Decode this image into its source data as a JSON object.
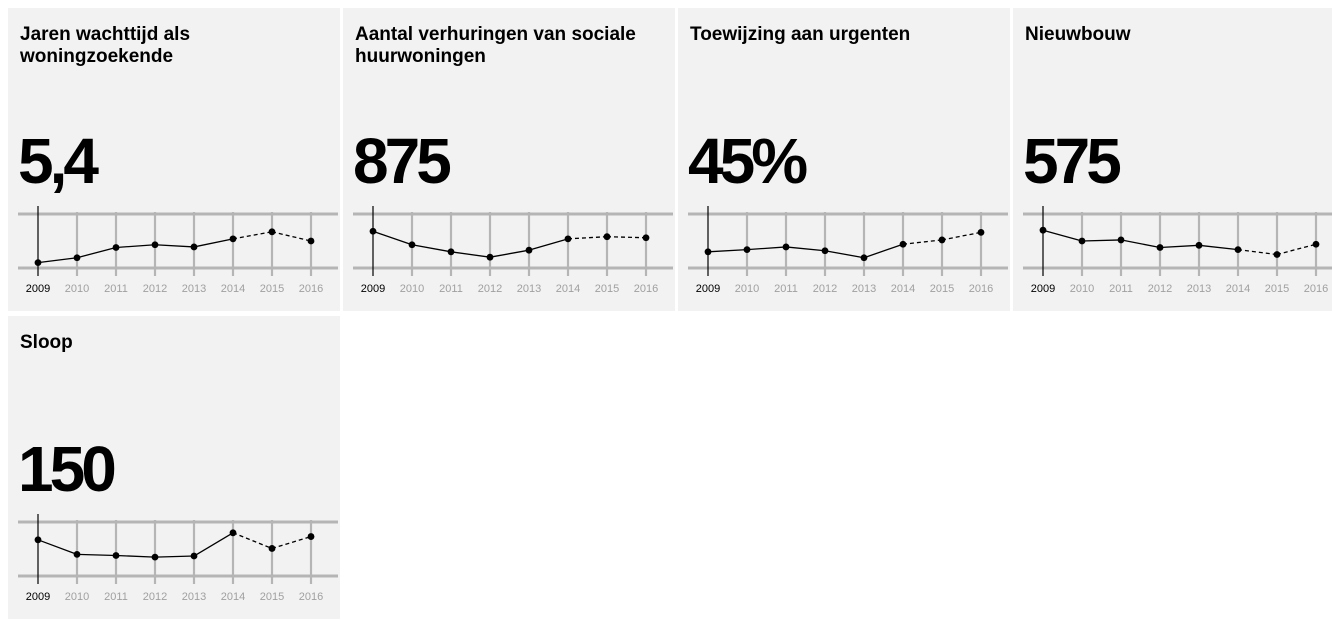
{
  "chart_data": [
    {
      "type": "line",
      "title": "Jaren wachttijd als woningzoekende",
      "value": "5,4",
      "x": [
        "2009",
        "2010",
        "2011",
        "2012",
        "2013",
        "2014",
        "2015",
        "2016"
      ],
      "values": [
        1.0,
        1.9,
        3.8,
        4.3,
        3.9,
        5.4,
        6.7,
        5.0
      ],
      "projected_from": 2014,
      "ylim": [
        0,
        10
      ]
    },
    {
      "type": "line",
      "title": "Aantal verhuringen van sociale huurwoningen",
      "value": "875",
      "x": [
        "2009",
        "2010",
        "2011",
        "2012",
        "2013",
        "2014",
        "2015",
        "2016"
      ],
      "values": [
        6.8,
        4.3,
        3.0,
        2.0,
        3.3,
        5.4,
        5.8,
        5.6
      ],
      "projected_from": 2014,
      "ylim": [
        0,
        10
      ]
    },
    {
      "type": "line",
      "title": "Toewijzing aan urgenten",
      "value": "45%",
      "x": [
        "2009",
        "2010",
        "2011",
        "2012",
        "2013",
        "2014",
        "2015",
        "2016"
      ],
      "values": [
        3.0,
        3.4,
        3.9,
        3.2,
        1.9,
        4.4,
        5.2,
        6.6
      ],
      "projected_from": 2014,
      "ylim": [
        0,
        10
      ]
    },
    {
      "type": "line",
      "title": "Nieuwbouw",
      "value": "575",
      "x": [
        "2009",
        "2010",
        "2011",
        "2012",
        "2013",
        "2014",
        "2015",
        "2016"
      ],
      "values": [
        7.0,
        5.0,
        5.2,
        3.8,
        4.2,
        3.4,
        2.5,
        4.4
      ],
      "projected_from": 2014,
      "ylim": [
        0,
        10
      ]
    },
    {
      "type": "line",
      "title": "Sloop",
      "value": "150",
      "x": [
        "2009",
        "2010",
        "2011",
        "2012",
        "2013",
        "2014",
        "2015",
        "2016"
      ],
      "values": [
        6.7,
        4.0,
        3.8,
        3.5,
        3.7,
        8.0,
        5.1,
        7.3
      ],
      "projected_from": 2014,
      "ylim": [
        0,
        10
      ]
    }
  ],
  "colors": {
    "card_bg": "#f2f2f2",
    "grid": "#b5b5b5",
    "line": "#000000",
    "faded_tick": "#a0a0a0"
  }
}
